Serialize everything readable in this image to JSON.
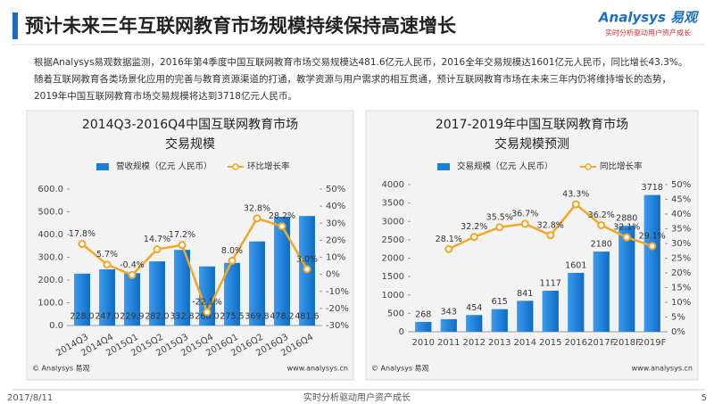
{
  "header": {
    "title": "预计未来三年互联网教育市场规模持续保持高速增长",
    "logo": "Analysys 易观",
    "tagline": "实时分析驱动用户资产成长"
  },
  "paragraph": [
    "根据Analysys易观数据监测，2016年第4季度中国互联网教育市场交易规模达481.6亿元人民币，2016全年交易规模达1601亿元人民币，同比增长43.3%。",
    "随着互联网教育各类场景化应用的完善与教育资源渠道的打通，教学资源与用户需求的相互贯通，预计互联网教育市场在未来三年内仍将维持增长的态势，",
    "2019年中国互联网教育市场交易规模将达到3718亿元人民币。"
  ],
  "chart_data": [
    {
      "type": "bar_line",
      "title": [
        "2014Q3-2016Q4中国互联网教育市场",
        "交易规模"
      ],
      "categories": [
        "2014Q3",
        "2014Q4",
        "2015Q1",
        "2015Q2",
        "2015Q3",
        "2015Q4",
        "2016Q1",
        "2016Q2",
        "2016Q3",
        "2016Q4"
      ],
      "series": [
        {
          "name": "营收规模（亿元 人民币）",
          "color": "#1a7fd6",
          "values": [
            228.0,
            247.0,
            229.9,
            282.0,
            332.8,
            260.0,
            275.5,
            369.8,
            478.2,
            481.6
          ],
          "value_labels": [
            "228.0",
            "247.0",
            "229.9",
            "282.0",
            "332.8",
            "260.0",
            "275.5",
            "369.8",
            "478.2",
            "481.6"
          ]
        },
        {
          "name": "环比增长率",
          "color": "#f5a623",
          "axis": "y2",
          "values": [
            17.8,
            5.7,
            -0.4,
            14.7,
            17.2,
            -22.1,
            8.0,
            32.8,
            28.2,
            3.0
          ],
          "value_labels": [
            "17.8%",
            "5.7%",
            "-0.4%",
            "14.7%",
            "17.2%",
            "-22.1%",
            "8.0%",
            "32.8%",
            "28.2%",
            "3.0%"
          ]
        }
      ],
      "ylim": [
        0,
        600
      ],
      "yticks": [
        {
          "value": 0,
          "label": "0.0"
        },
        {
          "value": 100,
          "label": "100.0"
        },
        {
          "value": 200,
          "label": "200.0"
        },
        {
          "value": 300,
          "label": "300.0"
        },
        {
          "value": 400,
          "label": "400.0"
        },
        {
          "value": 500,
          "label": "500.0"
        },
        {
          "value": 600,
          "label": "600.0"
        }
      ],
      "y2lim": [
        -30,
        50
      ],
      "y2ticks": [
        {
          "value": -30,
          "label": "-30%"
        },
        {
          "value": -20,
          "label": "-20%"
        },
        {
          "value": -10,
          "label": "-10%"
        },
        {
          "value": 0,
          "label": "0%"
        },
        {
          "value": 10,
          "label": "10%"
        },
        {
          "value": 20,
          "label": "20%"
        },
        {
          "value": 30,
          "label": "30%"
        },
        {
          "value": 40,
          "label": "40%"
        },
        {
          "value": 50,
          "label": "50%"
        }
      ],
      "source": "© Analysys 易观",
      "website": "www.analysys.cn"
    },
    {
      "type": "bar_line",
      "title": [
        "2017-2019年中国互联网教育市场",
        "交易规模预测"
      ],
      "categories": [
        "2010",
        "2011",
        "2012",
        "2013",
        "2014",
        "2015",
        "2016",
        "2017F",
        "2018F",
        "2019F"
      ],
      "series": [
        {
          "name": "交易规模（亿元 人民币）",
          "color": "#1a7fd6",
          "values": [
            268,
            343,
            454,
            615,
            841,
            1117,
            1601,
            2180,
            2880,
            3718
          ]
        },
        {
          "name": "同比增长率",
          "color": "#f5a623",
          "axis": "y2",
          "values": [
            null,
            28.1,
            32.2,
            35.5,
            36.7,
            32.8,
            43.3,
            36.2,
            32.1,
            29.1
          ],
          "value_labels": [
            null,
            "28.1%",
            "32.2%",
            "35.5%",
            "36.7%",
            "32.8%",
            "43.3%",
            "36.2%",
            "32.1%",
            "29.1%"
          ]
        }
      ],
      "ylim": [
        0,
        4000
      ],
      "yticks": [
        0,
        500,
        1000,
        1500,
        2000,
        2500,
        3000,
        3500,
        4000
      ],
      "y2lim": [
        0,
        50
      ],
      "y2ticks": [
        {
          "value": 0,
          "label": "0%"
        },
        {
          "value": 5,
          "label": "5%"
        },
        {
          "value": 10,
          "label": "10%"
        },
        {
          "value": 15,
          "label": "15%"
        },
        {
          "value": 20,
          "label": "20%"
        },
        {
          "value": 25,
          "label": "25%"
        },
        {
          "value": 30,
          "label": "30%"
        },
        {
          "value": 35,
          "label": "35%"
        },
        {
          "value": 40,
          "label": "40%"
        },
        {
          "value": 45,
          "label": "45%"
        },
        {
          "value": 50,
          "label": "50%"
        }
      ],
      "source": "© Analysys 易观",
      "website": "www.analysys.cn"
    }
  ],
  "footer": {
    "date": "2017/8/11",
    "slogan": "实时分析驱动用户资产成长",
    "page": "5"
  }
}
